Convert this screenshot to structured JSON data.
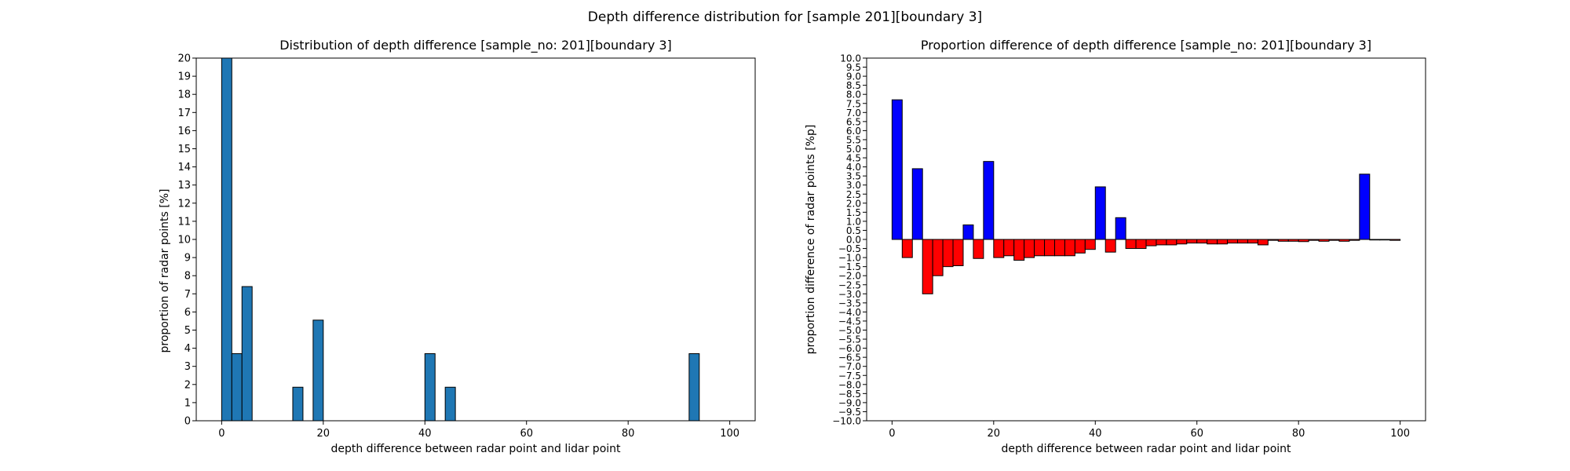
{
  "figure": {
    "suptitle": "Depth difference distribution for [sample 201][boundary 3]"
  },
  "chart_data": [
    {
      "type": "bar",
      "title": "Distribution of depth difference [sample_no: 201][boundary 3]",
      "xlabel": "depth difference between radar point and lidar point",
      "ylabel": "proportion of radar points [%]",
      "xlim": [
        -5,
        105
      ],
      "ylim": [
        0,
        20
      ],
      "xticks": [
        0,
        20,
        40,
        60,
        80,
        100
      ],
      "yticks": [
        0,
        1,
        2,
        3,
        4,
        5,
        6,
        7,
        8,
        9,
        10,
        11,
        12,
        13,
        14,
        15,
        16,
        17,
        18,
        19,
        20
      ],
      "bar_width": 2,
      "colors": {
        "bar": "#1f77b4",
        "edge": "#000000"
      },
      "grid": false,
      "x": [
        1,
        3,
        5,
        15,
        19,
        41,
        45,
        93
      ],
      "values": [
        20.0,
        3.7,
        7.4,
        1.85,
        5.55,
        3.7,
        1.85,
        3.7
      ]
    },
    {
      "type": "bar",
      "title": "Proportion difference of depth difference [sample_no: 201][boundary 3]",
      "xlabel": "depth difference between radar point and lidar point",
      "ylabel": "proportion difference of radar points [%p]",
      "xlim": [
        -5,
        105
      ],
      "ylim": [
        -10,
        10
      ],
      "xticks": [
        0,
        20,
        40,
        60,
        80,
        100
      ],
      "ytick_step": 0.5,
      "bar_width": 2,
      "colors": {
        "positive": "#0000ff",
        "negative": "#ff0000",
        "edge": "#000000"
      },
      "grid": false,
      "x": [
        1,
        3,
        5,
        7,
        9,
        11,
        13,
        15,
        17,
        19,
        21,
        23,
        25,
        27,
        29,
        31,
        33,
        35,
        37,
        39,
        41,
        43,
        45,
        47,
        49,
        51,
        53,
        55,
        57,
        59,
        61,
        63,
        65,
        67,
        69,
        71,
        73,
        75,
        77,
        79,
        81,
        83,
        85,
        87,
        89,
        91,
        93,
        95,
        97,
        99
      ],
      "values": [
        7.7,
        -1.0,
        3.9,
        -3.0,
        -2.0,
        -1.5,
        -1.45,
        0.8,
        -1.05,
        4.3,
        -1.0,
        -0.9,
        -1.15,
        -1.0,
        -0.9,
        -0.9,
        -0.9,
        -0.9,
        -0.75,
        -0.55,
        2.9,
        -0.7,
        1.2,
        -0.5,
        -0.5,
        -0.35,
        -0.3,
        -0.3,
        -0.25,
        -0.2,
        -0.2,
        -0.25,
        -0.25,
        -0.2,
        -0.2,
        -0.2,
        -0.3,
        -0.05,
        -0.1,
        -0.1,
        -0.12,
        -0.05,
        -0.1,
        -0.05,
        -0.1,
        -0.05,
        3.6,
        -0.03,
        -0.03,
        -0.05
      ]
    }
  ]
}
